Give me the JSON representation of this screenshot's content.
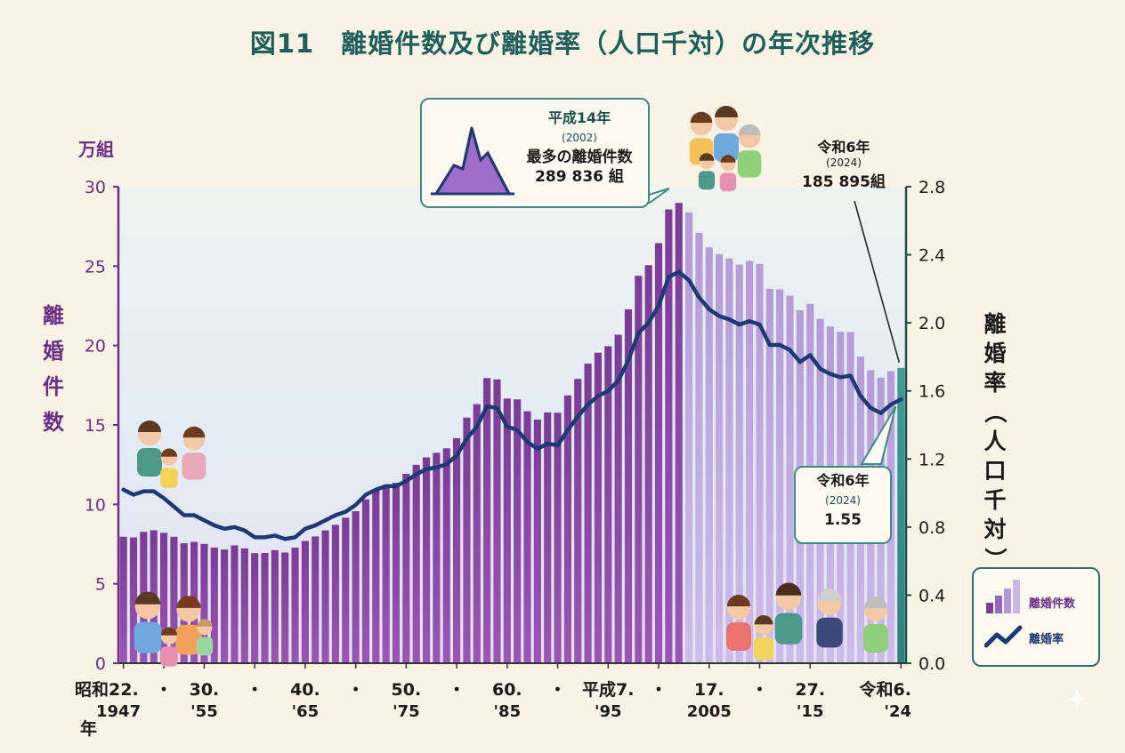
{
  "title": "図11　離婚件数及び離婚率（人口千対）の年次推移",
  "left_axis": {
    "unit": "万組",
    "label_chars": [
      "離",
      "婚",
      "件",
      "数"
    ]
  },
  "right_axis": {
    "label_chars": [
      "離",
      "婚",
      "率",
      "（",
      "人",
      "口",
      "千",
      "対",
      "）"
    ]
  },
  "peak_callout": {
    "line1": "平成14年",
    "line2": "(2002)",
    "line3": "最多の離婚件数",
    "line4": "289 836 組"
  },
  "latest_count_note": {
    "line1": "令和6年",
    "line2": "(2024)",
    "line3": "185 895組"
  },
  "latest_rate_callout": {
    "line1": "令和6年",
    "line2": "(2024)",
    "line3": "1.55"
  },
  "legend": {
    "bars_label": "離婚件数",
    "line_label": "離婚率"
  },
  "colors": {
    "title": "#1f5f5b",
    "bar_dark": "#6b2f86",
    "bar_light": "#c9b6e6",
    "bar_latest": "#3d9b98",
    "rate_line": "#1d3a75",
    "left_axis": "#6b2f86",
    "right_axis": "#1f4f4c"
  },
  "chart_data": {
    "type": "bar",
    "title": "離婚件数及び離婚率（人口千対）の年次推移",
    "x": [
      1947,
      1948,
      1949,
      1950,
      1951,
      1952,
      1953,
      1954,
      1955,
      1956,
      1957,
      1958,
      1959,
      1960,
      1961,
      1962,
      1963,
      1964,
      1965,
      1966,
      1967,
      1968,
      1969,
      1970,
      1971,
      1972,
      1973,
      1974,
      1975,
      1976,
      1977,
      1978,
      1979,
      1980,
      1981,
      1982,
      1983,
      1984,
      1985,
      1986,
      1987,
      1988,
      1989,
      1990,
      1991,
      1992,
      1993,
      1994,
      1995,
      1996,
      1997,
      1998,
      1999,
      2000,
      2001,
      2002,
      2003,
      2004,
      2005,
      2006,
      2007,
      2008,
      2009,
      2010,
      2011,
      2012,
      2013,
      2014,
      2015,
      2016,
      2017,
      2018,
      2019,
      2020,
      2021,
      2022,
      2023,
      2024
    ],
    "x_tick_labels": [
      {
        "x": 1947,
        "top": "昭和22.",
        "bottom": "1947"
      },
      {
        "x": 1951,
        "top": "・",
        "bottom": ""
      },
      {
        "x": 1955,
        "top": "30.",
        "bottom": "'55"
      },
      {
        "x": 1960,
        "top": "・",
        "bottom": ""
      },
      {
        "x": 1965,
        "top": "40.",
        "bottom": "'65"
      },
      {
        "x": 1970,
        "top": "・",
        "bottom": ""
      },
      {
        "x": 1975,
        "top": "50.",
        "bottom": "'75"
      },
      {
        "x": 1980,
        "top": "・",
        "bottom": ""
      },
      {
        "x": 1985,
        "top": "60.",
        "bottom": "'85"
      },
      {
        "x": 1990,
        "top": "・",
        "bottom": ""
      },
      {
        "x": 1995,
        "top": "平成7.",
        "bottom": "'95"
      },
      {
        "x": 2000,
        "top": "・",
        "bottom": ""
      },
      {
        "x": 2005,
        "top": "17.",
        "bottom": "2005"
      },
      {
        "x": 2010,
        "top": "・",
        "bottom": ""
      },
      {
        "x": 2015,
        "top": "27.",
        "bottom": "'15"
      },
      {
        "x": 2024,
        "top": "令和6.",
        "bottom": "'24"
      }
    ],
    "x_unit_label": "年",
    "series": [
      {
        "name": "離婚件数",
        "axis": "left",
        "values": [
          7.96,
          7.92,
          8.27,
          8.37,
          8.21,
          7.96,
          7.55,
          7.64,
          7.51,
          7.28,
          7.16,
          7.42,
          7.23,
          6.93,
          6.94,
          7.12,
          6.97,
          7.28,
          7.7,
          7.98,
          8.36,
          8.71,
          9.16,
          9.57,
          10.32,
          10.87,
          11.14,
          11.36,
          11.92,
          12.49,
          12.96,
          13.25,
          13.53,
          14.17,
          15.46,
          16.31,
          17.95,
          17.87,
          16.66,
          16.61,
          15.86,
          15.34,
          15.79,
          15.77,
          16.86,
          17.9,
          18.86,
          19.55,
          19.96,
          20.68,
          22.28,
          24.39,
          25.06,
          26.45,
          28.57,
          28.98,
          28.38,
          27.09,
          26.18,
          25.75,
          25.48,
          25.1,
          25.33,
          25.14,
          23.57,
          23.54,
          23.14,
          22.22,
          22.62,
          21.68,
          21.2,
          20.86,
          20.85,
          19.31,
          18.45,
          17.98,
          18.39,
          18.59
        ],
        "ylim": [
          0,
          30
        ],
        "yticks": [
          0,
          5,
          10,
          15,
          20,
          25,
          30
        ]
      },
      {
        "name": "離婚率",
        "axis": "right",
        "values": [
          1.02,
          0.99,
          1.01,
          1.01,
          0.97,
          0.92,
          0.87,
          0.87,
          0.84,
          0.81,
          0.79,
          0.8,
          0.78,
          0.74,
          0.74,
          0.75,
          0.73,
          0.74,
          0.79,
          0.81,
          0.84,
          0.87,
          0.89,
          0.93,
          0.99,
          1.02,
          1.04,
          1.04,
          1.07,
          1.11,
          1.14,
          1.15,
          1.17,
          1.22,
          1.32,
          1.39,
          1.51,
          1.5,
          1.39,
          1.37,
          1.3,
          1.26,
          1.29,
          1.28,
          1.37,
          1.45,
          1.52,
          1.57,
          1.6,
          1.66,
          1.78,
          1.94,
          2.0,
          2.1,
          2.27,
          2.3,
          2.25,
          2.15,
          2.08,
          2.04,
          2.02,
          1.99,
          2.01,
          1.99,
          1.87,
          1.87,
          1.84,
          1.77,
          1.81,
          1.73,
          1.7,
          1.68,
          1.69,
          1.57,
          1.5,
          1.47,
          1.52,
          1.55
        ],
        "ylim": [
          0,
          2.8
        ],
        "yticks": [
          "0.0",
          "0.4",
          "0.8",
          "1.2",
          "1.6",
          "2.0",
          "2.4",
          "2.8"
        ]
      }
    ],
    "grid": false,
    "legend_position": "bottom-right"
  }
}
